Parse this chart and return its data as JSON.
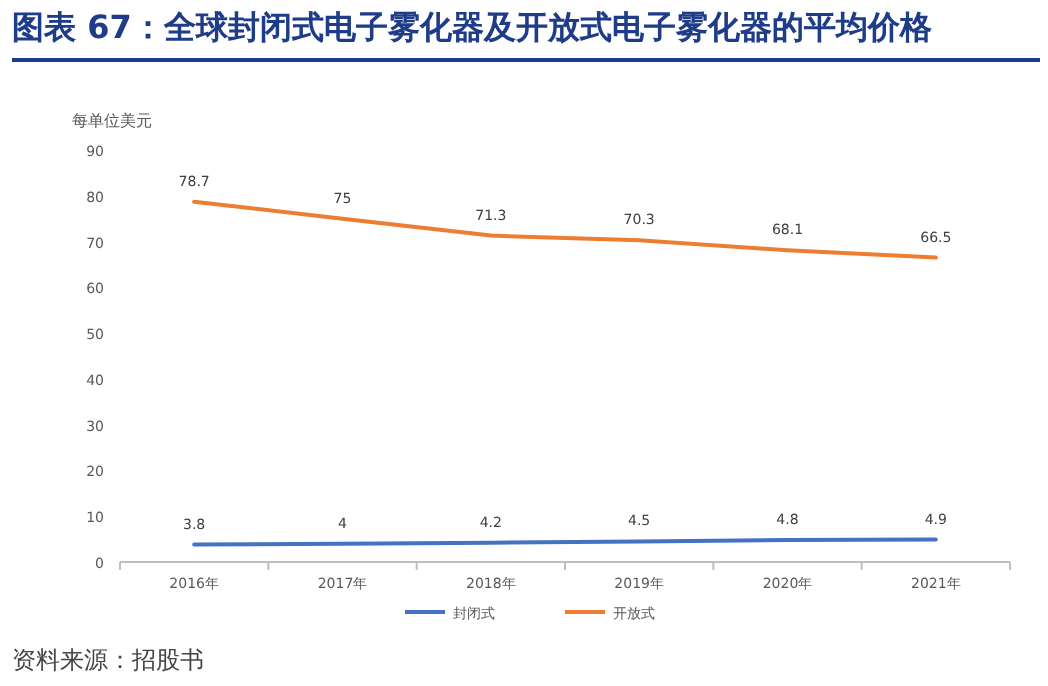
{
  "chart_data": {
    "type": "line",
    "title": "图表 67：全球封闭式电子雾化器及开放式电子雾化器的平均价格",
    "ylabel": "每单位美元",
    "categories": [
      "2016年",
      "2017年",
      "2018年",
      "2019年",
      "2020年",
      "2021年"
    ],
    "series": [
      {
        "name": "封闭式",
        "color": "#4472c4",
        "values": [
          3.8,
          4,
          4.2,
          4.5,
          4.8,
          4.9
        ]
      },
      {
        "name": "开放式",
        "color": "#ed7d31",
        "values": [
          78.7,
          75,
          71.3,
          70.3,
          68.1,
          66.5
        ]
      }
    ],
    "ylim": [
      0,
      90
    ],
    "yticks": [
      0,
      10,
      20,
      30,
      40,
      50,
      60,
      70,
      80,
      90
    ],
    "grid": false,
    "legend": "bottom",
    "data_labels": true,
    "marker": "none",
    "annotations": [
      "资料来源：招股书"
    ]
  }
}
